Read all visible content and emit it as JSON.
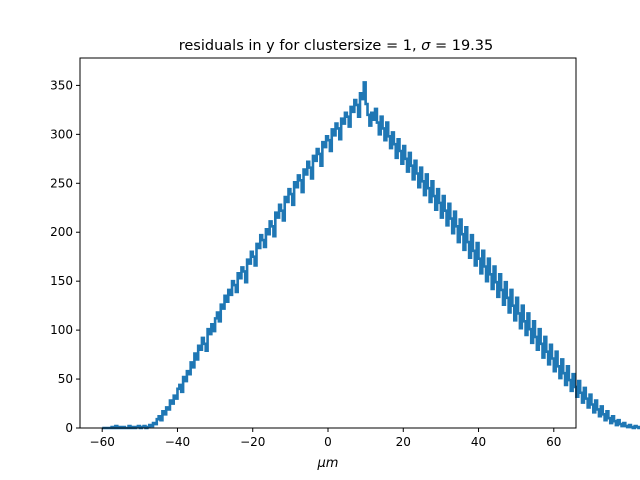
{
  "chart_data": {
    "type": "step",
    "title": "residuals in y for clustersize = 1, σ = 19.35",
    "title_parts": {
      "prefix": "residuals in y for clustersize = 1, ",
      "sigma": "σ",
      "suffix": " = 19.35"
    },
    "xlabel": "μm",
    "ylabel": "",
    "xlim": [
      -65.9,
      65.9
    ],
    "ylim": [
      0,
      378
    ],
    "xticks": [
      -60,
      -40,
      -20,
      0,
      20,
      40,
      60
    ],
    "yticks": [
      0,
      50,
      100,
      150,
      200,
      250,
      300,
      350
    ],
    "grid": false,
    "color": "#1f77b4",
    "bin_width": 0.5,
    "x_start": -60,
    "series": [
      {
        "values": [
          0,
          0,
          0,
          0,
          0,
          1,
          0,
          2,
          0,
          1,
          0,
          1,
          0,
          0,
          2,
          0,
          1,
          0,
          1,
          2,
          0,
          1,
          2,
          0,
          1,
          3,
          2,
          5,
          4,
          9,
          12,
          8,
          17,
          14,
          21,
          19,
          28,
          25,
          33,
          30,
          40,
          44,
          37,
          52,
          48,
          58,
          55,
          67,
          62,
          76,
          70,
          84,
          80,
          92,
          86,
          79,
          101,
          96,
          106,
          99,
          112,
          118,
          109,
          126,
          122,
          135,
          129,
          141,
          136,
          150,
          146,
          139,
          158,
          153,
          164,
          160,
          149,
          172,
          168,
          180,
          175,
          166,
          188,
          184,
          197,
          192,
          185,
          203,
          198,
          211,
          206,
          196,
          220,
          215,
          228,
          222,
          212,
          236,
          231,
          244,
          239,
          228,
          251,
          246,
          258,
          253,
          241,
          264,
          259,
          272,
          266,
          255,
          278,
          273,
          285,
          280,
          268,
          292,
          287,
          298,
          294,
          283,
          305,
          299,
          311,
          306,
          295,
          316,
          311,
          322,
          318,
          308,
          328,
          323,
          335,
          330,
          318,
          342,
          336,
          353,
          331,
          320,
          309,
          322,
          315,
          326,
          312,
          300,
          318,
          306,
          294,
          312,
          298,
          286,
          302,
          290,
          276,
          295,
          283,
          270,
          288,
          275,
          262,
          281,
          268,
          254,
          273,
          260,
          246,
          266,
          252,
          238,
          259,
          245,
          231,
          252,
          237,
          223,
          244,
          230,
          215,
          237,
          222,
          207,
          229,
          214,
          199,
          221,
          206,
          190,
          213,
          198,
          182,
          205,
          190,
          174,
          197,
          181,
          166,
          189,
          173,
          158,
          181,
          165,
          150,
          173,
          157,
          142,
          165,
          149,
          134,
          157,
          141,
          126,
          149,
          133,
          118,
          141,
          125,
          110,
          133,
          117,
          102,
          125,
          109,
          95,
          117,
          101,
          87,
          109,
          93,
          80,
          101,
          86,
          72,
          93,
          78,
          65,
          85,
          71,
          58,
          78,
          63,
          51,
          70,
          56,
          44,
          63,
          49,
          38,
          55,
          42,
          32,
          48,
          36,
          26,
          41,
          30,
          21,
          34,
          24,
          16,
          28,
          19,
          12,
          22,
          14,
          8,
          17,
          10,
          5,
          12,
          7,
          3,
          8,
          4,
          2,
          5,
          2,
          1,
          3,
          1,
          0,
          2,
          1,
          0,
          1,
          0,
          1,
          0,
          0,
          1,
          0,
          0,
          1,
          0,
          0,
          0,
          0,
          0,
          0,
          0,
          0,
          0,
          0,
          0,
          0,
          0,
          0,
          0,
          0,
          0
        ]
      }
    ]
  }
}
